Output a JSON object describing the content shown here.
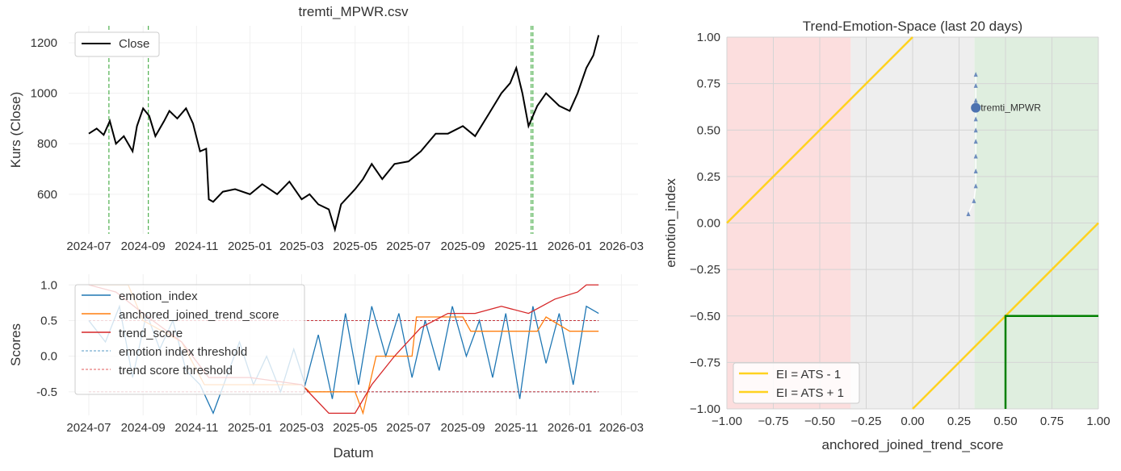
{
  "chart_data": [
    {
      "type": "line",
      "title": "tremti_MPWR.csv",
      "xlabel": "",
      "ylabel": "Kurs (Close)",
      "xlim": [
        "2024-06-08",
        "2026-03-20"
      ],
      "ylim": [
        443,
        1267
      ],
      "xticks": [
        "2024-07",
        "2024-09",
        "2024-11",
        "2025-01",
        "2025-03",
        "2025-05",
        "2025-07",
        "2025-09",
        "2025-11",
        "2026-01",
        "2026-03"
      ],
      "yticks": [
        600,
        800,
        1000,
        1200
      ],
      "legend": {
        "position": "top-left",
        "entries": [
          "Close"
        ]
      },
      "series": [
        {
          "name": "Close",
          "color": "#000000",
          "points": [
            [
              "2024-07-01",
              840
            ],
            [
              "2024-07-10",
              860
            ],
            [
              "2024-07-18",
              835
            ],
            [
              "2024-07-25",
              890
            ],
            [
              "2024-08-01",
              800
            ],
            [
              "2024-08-10",
              830
            ],
            [
              "2024-08-20",
              770
            ],
            [
              "2024-08-25",
              870
            ],
            [
              "2024-09-01",
              940
            ],
            [
              "2024-09-08",
              910
            ],
            [
              "2024-09-15",
              830
            ],
            [
              "2024-09-25",
              890
            ],
            [
              "2024-10-01",
              930
            ],
            [
              "2024-10-10",
              900
            ],
            [
              "2024-10-20",
              940
            ],
            [
              "2024-10-28",
              880
            ],
            [
              "2024-11-05",
              770
            ],
            [
              "2024-11-12",
              780
            ],
            [
              "2024-11-15",
              580
            ],
            [
              "2024-11-20",
              570
            ],
            [
              "2024-12-01",
              610
            ],
            [
              "2024-12-15",
              620
            ],
            [
              "2025-01-01",
              600
            ],
            [
              "2025-01-15",
              640
            ],
            [
              "2025-02-01",
              600
            ],
            [
              "2025-02-15",
              650
            ],
            [
              "2025-03-01",
              580
            ],
            [
              "2025-03-10",
              600
            ],
            [
              "2025-03-20",
              560
            ],
            [
              "2025-04-01",
              540
            ],
            [
              "2025-04-08",
              460
            ],
            [
              "2025-04-15",
              560
            ],
            [
              "2025-05-01",
              620
            ],
            [
              "2025-05-10",
              660
            ],
            [
              "2025-05-20",
              720
            ],
            [
              "2025-06-01",
              660
            ],
            [
              "2025-06-15",
              720
            ],
            [
              "2025-07-01",
              730
            ],
            [
              "2025-07-15",
              770
            ],
            [
              "2025-08-01",
              840
            ],
            [
              "2025-08-15",
              840
            ],
            [
              "2025-09-01",
              870
            ],
            [
              "2025-09-15",
              830
            ],
            [
              "2025-10-01",
              920
            ],
            [
              "2025-10-15",
              1000
            ],
            [
              "2025-10-25",
              1040
            ],
            [
              "2025-11-01",
              1100
            ],
            [
              "2025-11-08",
              1000
            ],
            [
              "2025-11-15",
              870
            ],
            [
              "2025-11-25",
              950
            ],
            [
              "2025-12-05",
              1000
            ],
            [
              "2025-12-20",
              950
            ],
            [
              "2026-01-01",
              930
            ],
            [
              "2026-01-10",
              1000
            ],
            [
              "2026-01-20",
              1100
            ],
            [
              "2026-01-28",
              1150
            ],
            [
              "2026-02-03",
              1230
            ]
          ]
        }
      ],
      "vlines": {
        "color": "#2ca02c",
        "dates": [
          "2024-07-24",
          "2024-09-07",
          "2025-11-18",
          "2025-11-20"
        ]
      }
    },
    {
      "type": "line",
      "title": "",
      "xlabel": "Datum",
      "ylabel": "Scores",
      "xlim": [
        "2024-06-08",
        "2026-03-20"
      ],
      "ylim": [
        -0.83,
        1.15
      ],
      "xticks": [
        "2024-07",
        "2024-09",
        "2024-11",
        "2025-01",
        "2025-03",
        "2025-05",
        "2025-07",
        "2025-09",
        "2025-11",
        "2026-01",
        "2026-03"
      ],
      "yticks": [
        -0.5,
        0.0,
        0.5,
        1.0
      ],
      "legend": {
        "position": "top-left",
        "entries": [
          "emotion_index",
          "anchored_joined_trend_score",
          "trend_score",
          "emotion index threshold",
          "trend score threshold"
        ]
      },
      "series": [
        {
          "name": "emotion_index",
          "color": "#1f77b4",
          "points": [
            [
              "2024-07-01",
              0.5
            ],
            [
              "2024-07-20",
              0.2
            ],
            [
              "2024-08-05",
              0.7
            ],
            [
              "2024-08-20",
              -0.3
            ],
            [
              "2024-09-05",
              0.6
            ],
            [
              "2024-09-20",
              0.1
            ],
            [
              "2024-10-05",
              0.5
            ],
            [
              "2024-10-20",
              -0.2
            ],
            [
              "2024-11-05",
              -0.4
            ],
            [
              "2024-11-20",
              -0.8
            ],
            [
              "2024-12-05",
              -0.3
            ],
            [
              "2024-12-20",
              0.2
            ],
            [
              "2025-01-05",
              -0.4
            ],
            [
              "2025-01-20",
              0.0
            ],
            [
              "2025-02-05",
              -0.5
            ],
            [
              "2025-02-20",
              0.1
            ],
            [
              "2025-03-05",
              -0.4
            ],
            [
              "2025-03-20",
              0.3
            ],
            [
              "2025-04-05",
              -0.6
            ],
            [
              "2025-04-20",
              0.6
            ],
            [
              "2025-05-05",
              -0.4
            ],
            [
              "2025-05-20",
              0.7
            ],
            [
              "2025-06-05",
              0.0
            ],
            [
              "2025-06-20",
              0.6
            ],
            [
              "2025-07-05",
              -0.3
            ],
            [
              "2025-07-20",
              0.5
            ],
            [
              "2025-08-05",
              -0.2
            ],
            [
              "2025-08-20",
              0.7
            ],
            [
              "2025-09-05",
              0.0
            ],
            [
              "2025-09-20",
              0.5
            ],
            [
              "2025-10-05",
              -0.3
            ],
            [
              "2025-10-20",
              0.6
            ],
            [
              "2025-11-05",
              -0.6
            ],
            [
              "2025-11-20",
              0.7
            ],
            [
              "2025-12-05",
              -0.1
            ],
            [
              "2025-12-20",
              0.6
            ],
            [
              "2026-01-05",
              -0.4
            ],
            [
              "2026-01-20",
              0.7
            ],
            [
              "2026-02-03",
              0.6
            ]
          ]
        },
        {
          "name": "anchored_joined_trend_score",
          "color": "#ff7f0e",
          "points": [
            [
              "2024-07-01",
              1.0
            ],
            [
              "2024-08-15",
              1.0
            ],
            [
              "2024-09-01",
              0.5
            ],
            [
              "2024-10-15",
              0.2
            ],
            [
              "2024-11-10",
              -0.4
            ],
            [
              "2025-01-10",
              -0.4
            ],
            [
              "2025-03-01",
              -0.4
            ],
            [
              "2025-03-10",
              -0.5
            ],
            [
              "2025-05-01",
              -0.5
            ],
            [
              "2025-05-10",
              -0.8
            ],
            [
              "2025-05-25",
              0.0
            ],
            [
              "2025-07-05",
              0.0
            ],
            [
              "2025-07-10",
              0.55
            ],
            [
              "2025-09-01",
              0.55
            ],
            [
              "2025-09-10",
              0.35
            ],
            [
              "2025-11-25",
              0.35
            ],
            [
              "2025-12-05",
              0.55
            ],
            [
              "2026-01-01",
              0.35
            ],
            [
              "2026-02-03",
              0.35
            ]
          ]
        },
        {
          "name": "trend_score",
          "color": "#d62728",
          "points": [
            [
              "2024-07-01",
              1.0
            ],
            [
              "2024-08-01",
              0.9
            ],
            [
              "2024-09-01",
              0.6
            ],
            [
              "2024-10-15",
              0.2
            ],
            [
              "2024-11-15",
              -0.3
            ],
            [
              "2025-01-01",
              -0.3
            ],
            [
              "2025-03-01",
              -0.4
            ],
            [
              "2025-04-01",
              -0.8
            ],
            [
              "2025-05-01",
              -0.8
            ],
            [
              "2025-05-20",
              -0.4
            ],
            [
              "2025-06-15",
              0.0
            ],
            [
              "2025-07-15",
              0.4
            ],
            [
              "2025-08-15",
              0.6
            ],
            [
              "2025-09-15",
              0.6
            ],
            [
              "2025-10-15",
              0.7
            ],
            [
              "2025-11-15",
              0.6
            ],
            [
              "2025-12-15",
              0.8
            ],
            [
              "2026-01-10",
              0.9
            ],
            [
              "2026-01-20",
              1.0
            ],
            [
              "2026-02-03",
              1.0
            ]
          ]
        }
      ],
      "thresholds": [
        {
          "name": "emotion index threshold",
          "color": "#1f77b4",
          "values": [
            0.5,
            -0.5
          ]
        },
        {
          "name": "trend score threshold",
          "color": "#d62728",
          "values": [
            0.5,
            -0.5
          ]
        }
      ]
    },
    {
      "type": "scatter",
      "title": "Trend-Emotion-Space (last 20 days)",
      "xlabel": "anchored_joined_trend_score",
      "ylabel": "emotion_index",
      "xlim": [
        -1,
        1
      ],
      "ylim": [
        -1,
        1
      ],
      "xticks": [
        "−1.00",
        "−0.75",
        "−0.50",
        "−0.25",
        "0.00",
        "0.25",
        "0.50",
        "0.75",
        "1.00"
      ],
      "yticks": [
        "1.00",
        "0.75",
        "0.50",
        "0.25",
        "0.00",
        "−0.25",
        "−0.50",
        "−0.75",
        "−1.00"
      ],
      "regions": [
        {
          "from": -1,
          "to": -0.333,
          "color": "#fcdede"
        },
        {
          "from": -0.333,
          "to": 0.333,
          "color": "#eeeeee"
        },
        {
          "from": 0.333,
          "to": 1,
          "color": "#dfeedf"
        }
      ],
      "legend": {
        "position": "bottom-left",
        "entries": [
          "EI = ATS - 1",
          "EI = ATS + 1"
        ]
      },
      "lines": [
        {
          "name": "EI = ATS - 1",
          "color": "#ffd21f",
          "offset": -1
        },
        {
          "name": "EI = ATS + 1",
          "color": "#ffd21f",
          "offset": 1
        }
      ],
      "box": {
        "color": "#008000",
        "x": 0.5,
        "y": -0.5
      },
      "trail": [
        [
          0.3,
          0.05
        ],
        [
          0.33,
          0.12
        ],
        [
          0.34,
          0.2
        ],
        [
          0.34,
          0.28
        ],
        [
          0.34,
          0.36
        ],
        [
          0.34,
          0.44
        ],
        [
          0.34,
          0.5
        ],
        [
          0.34,
          0.56
        ],
        [
          0.34,
          0.66
        ],
        [
          0.34,
          0.74
        ],
        [
          0.34,
          0.8
        ]
      ],
      "point": {
        "label": "tremti_MPWR",
        "x": 0.34,
        "y": 0.62,
        "color": "#4c72b0"
      }
    }
  ]
}
